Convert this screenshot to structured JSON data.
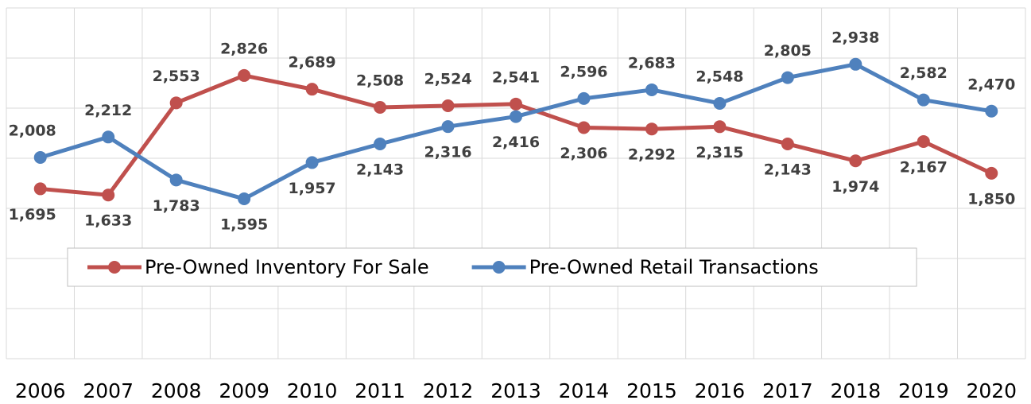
{
  "chart_data": {
    "type": "line",
    "categories": [
      "2006",
      "2007",
      "2008",
      "2009",
      "2010",
      "2011",
      "2012",
      "2013",
      "2014",
      "2015",
      "2016",
      "2017",
      "2018",
      "2019",
      "2020"
    ],
    "series": [
      {
        "name": "Pre-Owned Inventory For Sale",
        "color": "#c0504d",
        "values": [
          1695,
          1633,
          2553,
          2826,
          2689,
          2508,
          2524,
          2541,
          2306,
          2292,
          2315,
          2143,
          1974,
          2167,
          1850
        ],
        "value_labels": [
          "1,695",
          "1,633",
          "2,553",
          "2,826",
          "2,689",
          "2,508",
          "2,524",
          "2,541",
          "2,306",
          "2,292",
          "2,315",
          "2,143",
          "1,974",
          "2,167",
          "1,850"
        ]
      },
      {
        "name": "Pre-Owned Retail Transactions",
        "color": "#4f81bd",
        "values": [
          2008,
          2212,
          1783,
          1595,
          1957,
          2143,
          2316,
          2416,
          2596,
          2683,
          2548,
          2805,
          2938,
          2582,
          2470
        ],
        "value_labels": [
          "2,008",
          "2,212",
          "1,783",
          "1,595",
          "1,957",
          "2,143",
          "2,316",
          "2,416",
          "2,596",
          "2,683",
          "2,548",
          "2,805",
          "2,938",
          "2,582",
          "2,470"
        ]
      }
    ],
    "ylim": [
      0,
      3500
    ],
    "yticks": [
      0,
      500,
      1000,
      1500,
      2000,
      2500,
      3000,
      3500
    ],
    "grid": true,
    "legend": "center"
  }
}
